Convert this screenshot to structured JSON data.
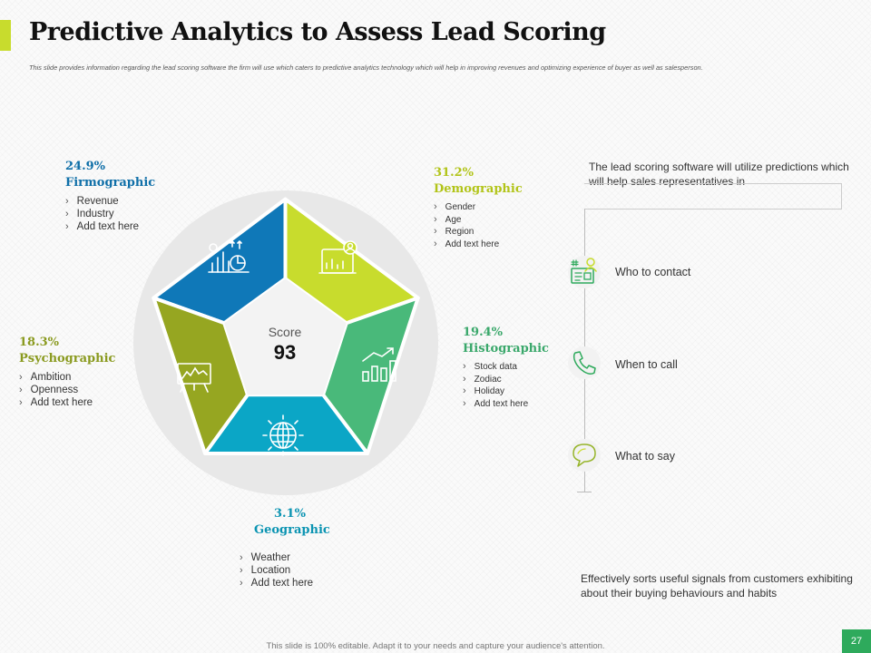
{
  "header": {
    "title": "Predictive Analytics to Assess Lead Scoring",
    "subtitle": "This slide provides information  regarding the lead scoring software the firm will use which caters to predictive analytics technology  which will help in improving  revenues and optimizing  experience  of buyer as well as salesperson.",
    "accent_color": "#c8dc2d"
  },
  "wheel": {
    "center_label": "Score",
    "center_value": "93",
    "segments": [
      {
        "key": "firmographic",
        "percent": "24.9%",
        "name": "Firmographic",
        "color": "#0f78b8",
        "label_color": "#0f6fa8",
        "icon": "analytics-chart-icon",
        "items": [
          "Revenue",
          "Industry",
          "Add text here"
        ]
      },
      {
        "key": "demographic",
        "percent": "31.2%",
        "name": "Demographic",
        "color": "#c8dc2d",
        "label_color": "#b2c419",
        "icon": "user-dashboard-icon",
        "items": [
          "Gender",
          "Age",
          "Region",
          "Add text here"
        ]
      },
      {
        "key": "histographic",
        "percent": "19.4%",
        "name": "Histographic",
        "color": "#49b97a",
        "label_color": "#3aa86b",
        "icon": "growth-chart-icon",
        "items": [
          "Stock data",
          "Zodiac",
          "Holiday",
          "Add text here"
        ]
      },
      {
        "key": "geographic",
        "percent": "3.1%",
        "name": "Geographic",
        "color": "#0ba6c6",
        "label_color": "#0b94b2",
        "icon": "globe-icon",
        "items": [
          "Weather",
          "Location",
          "Add text here"
        ]
      },
      {
        "key": "psychographic",
        "percent": "18.3%",
        "name": "Psychographic",
        "color": "#96a621",
        "label_color": "#8a9a1f",
        "icon": "presentation-board-icon",
        "items": [
          "Ambition",
          "Openness",
          "Add text here"
        ]
      }
    ]
  },
  "right_panel": {
    "intro": "The lead scoring software will utilize predictions which will help sales representatives  in",
    "steps": [
      {
        "label": "Who to contact",
        "icon": "contact-card-icon"
      },
      {
        "label": "When to call",
        "icon": "phone-icon"
      },
      {
        "label": "What to say",
        "icon": "speech-bubble-icon"
      }
    ],
    "conclusion": "Effectively  sorts useful signals from customers exhibiting about their buying behaviours  and habits"
  },
  "footer": {
    "note": "This slide is 100% editable. Adapt it to your needs and capture your audience's attention.",
    "page_number": "27",
    "page_color": "#2eaa5c"
  }
}
